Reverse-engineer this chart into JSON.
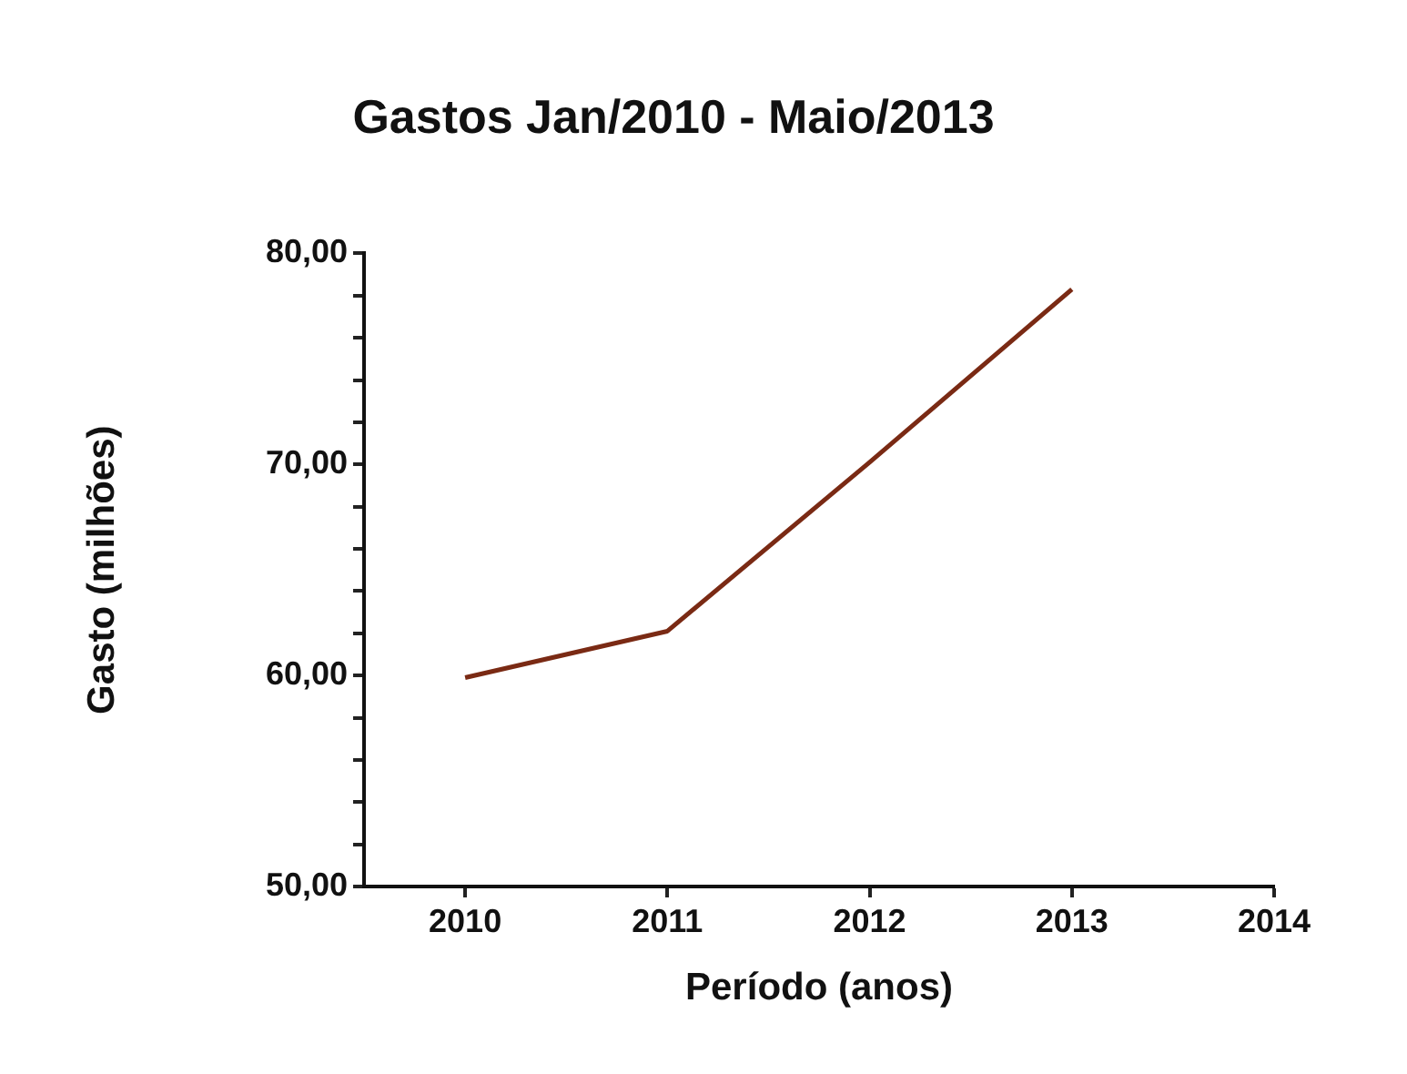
{
  "chart_data": {
    "type": "line",
    "title": "Gastos Jan/2010 - Maio/2013",
    "xlabel": "Período (anos)",
    "ylabel": "Gasto (milhões)",
    "x": [
      2010,
      2011,
      2012,
      2013
    ],
    "series": [
      {
        "color": "#7a2a14",
        "values": [
          59.9,
          62.1,
          70.1,
          78.3
        ]
      }
    ],
    "xlim": [
      2009.5,
      2014
    ],
    "xticks": [
      2010,
      2011,
      2012,
      2013,
      2014
    ],
    "ylim": [
      50,
      80
    ],
    "yticks": [
      {
        "value": 50,
        "label": "50,00"
      },
      {
        "value": 52,
        "label": null
      },
      {
        "value": 54,
        "label": null
      },
      {
        "value": 56,
        "label": null
      },
      {
        "value": 58,
        "label": null
      },
      {
        "value": 60,
        "label": "60,00"
      },
      {
        "value": 62,
        "label": null
      },
      {
        "value": 64,
        "label": null
      },
      {
        "value": 66,
        "label": null
      },
      {
        "value": 68,
        "label": null
      },
      {
        "value": 70,
        "label": "70,00"
      },
      {
        "value": 72,
        "label": null
      },
      {
        "value": 74,
        "label": null
      },
      {
        "value": 76,
        "label": null
      },
      {
        "value": 78,
        "label": null
      },
      {
        "value": 80,
        "label": "80,00"
      }
    ],
    "grid": false,
    "legend": false,
    "marker": "none",
    "line_style": "solid"
  }
}
